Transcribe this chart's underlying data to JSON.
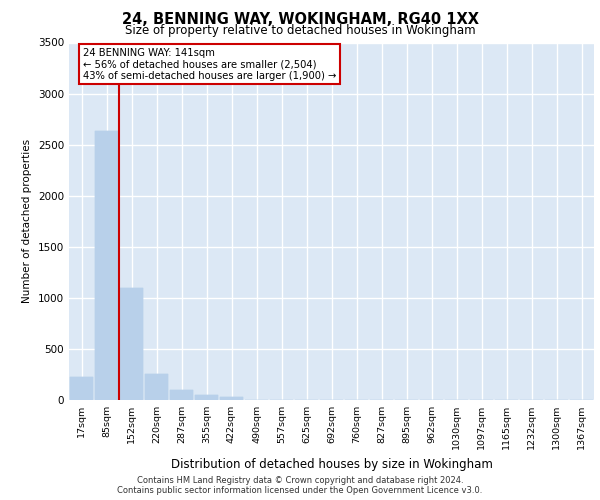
{
  "title": "24, BENNING WAY, WOKINGHAM, RG40 1XX",
  "subtitle": "Size of property relative to detached houses in Wokingham",
  "xlabel": "Distribution of detached houses by size in Wokingham",
  "ylabel": "Number of detached properties",
  "categories": [
    "17sqm",
    "85sqm",
    "152sqm",
    "220sqm",
    "287sqm",
    "355sqm",
    "422sqm",
    "490sqm",
    "557sqm",
    "625sqm",
    "692sqm",
    "760sqm",
    "827sqm",
    "895sqm",
    "962sqm",
    "1030sqm",
    "1097sqm",
    "1165sqm",
    "1232sqm",
    "1300sqm",
    "1367sqm"
  ],
  "values": [
    230,
    2630,
    1100,
    255,
    95,
    50,
    30,
    0,
    0,
    0,
    0,
    0,
    0,
    0,
    0,
    0,
    0,
    0,
    0,
    0,
    0
  ],
  "bar_color": "#b8d0ea",
  "bar_edge_color": "#b8d0ea",
  "marker_label": "24 BENNING WAY: 141sqm",
  "annotation_line1": "← 56% of detached houses are smaller (2,504)",
  "annotation_line2": "43% of semi-detached houses are larger (1,900) →",
  "marker_color": "#cc0000",
  "annotation_box_color": "#ffffff",
  "annotation_box_edge": "#cc0000",
  "ylim": [
    0,
    3500
  ],
  "yticks": [
    0,
    500,
    1000,
    1500,
    2000,
    2500,
    3000,
    3500
  ],
  "plot_bg_color": "#dce8f5",
  "grid_color": "#ffffff",
  "footer_line1": "Contains HM Land Registry data © Crown copyright and database right 2024.",
  "footer_line2": "Contains public sector information licensed under the Open Government Licence v3.0."
}
